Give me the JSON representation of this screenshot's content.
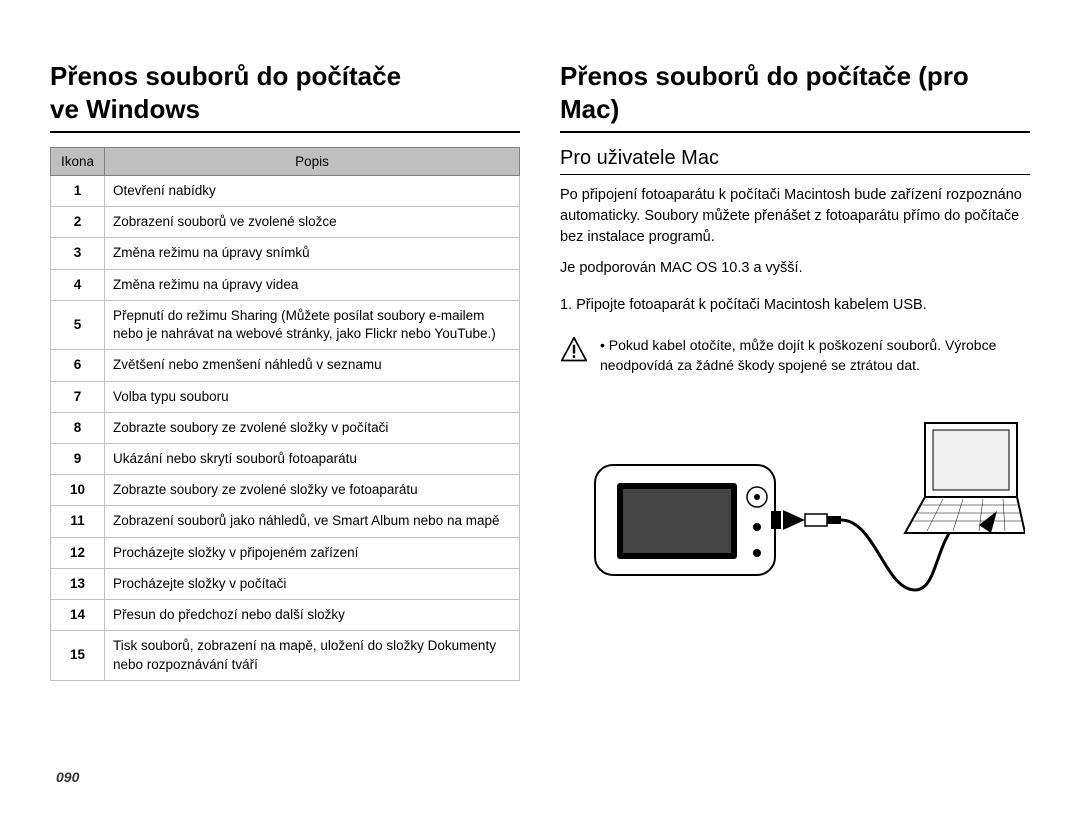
{
  "pageNumber": "090",
  "left": {
    "heading_line1": "Přenos souborů do počítače",
    "heading_line2": "ve Windows",
    "table": {
      "header_icon": "Ikona",
      "header_desc": "Popis",
      "rows": [
        {
          "n": "1",
          "d": "Otevření nabídky"
        },
        {
          "n": "2",
          "d": "Zobrazení souborů ve zvolené složce"
        },
        {
          "n": "3",
          "d": "Změna režimu na úpravy snímků"
        },
        {
          "n": "4",
          "d": "Změna režimu na úpravy videa"
        },
        {
          "n": "5",
          "d": "Přepnutí do režimu Sharing (Můžete posílat soubory e-mailem nebo je nahrávat na webové stránky, jako Flickr nebo YouTube.)"
        },
        {
          "n": "6",
          "d": "Zvětšení nebo zmenšení náhledů v seznamu"
        },
        {
          "n": "7",
          "d": "Volba typu souboru"
        },
        {
          "n": "8",
          "d": "Zobrazte soubory ze zvolené složky v počítači"
        },
        {
          "n": "9",
          "d": "Ukázání nebo skrytí souborů fotoaparátu"
        },
        {
          "n": "10",
          "d": "Zobrazte soubory ze zvolené složky ve fotoaparátu"
        },
        {
          "n": "11",
          "d": "Zobrazení souborů jako náhledů, ve Smart Album nebo na mapě"
        },
        {
          "n": "12",
          "d": "Procházejte složky v připojeném zařízení"
        },
        {
          "n": "13",
          "d": "Procházejte složky v počítači"
        },
        {
          "n": "14",
          "d": "Přesun do předchozí nebo další složky"
        },
        {
          "n": "15",
          "d": "Tisk souborů, zobrazení na mapě, uložení do složky Dokumenty nebo rozpoznávání tváří"
        }
      ]
    }
  },
  "right": {
    "heading": "Přenos souborů do počítače (pro Mac)",
    "subtitle": "Pro uživatele Mac",
    "para1": "Po připojení fotoaparátu k počítači Macintosh bude zařízení rozpoznáno automaticky. Soubory můžete přenášet z fotoaparátu přímo do počítače bez instalace programů.",
    "para2": "Je podporován MAC OS 10.3 a vyšší.",
    "step1": "1. Připojte fotoaparát k počítači Macintosh kabelem USB.",
    "warning": "Pokud kabel otočíte, může dojít k poškození souborů. Výrobce neodpovídá za žádné škody spojené se ztrátou dat."
  },
  "style": {
    "background": "#ffffff",
    "text": "#000000",
    "tableHeaderBg": "#bfbfbf",
    "tableBorder": "#c0c0c0",
    "ruleColor": "#000000",
    "bodyFontSizePt": 11,
    "headingFontSizePt": 19
  }
}
